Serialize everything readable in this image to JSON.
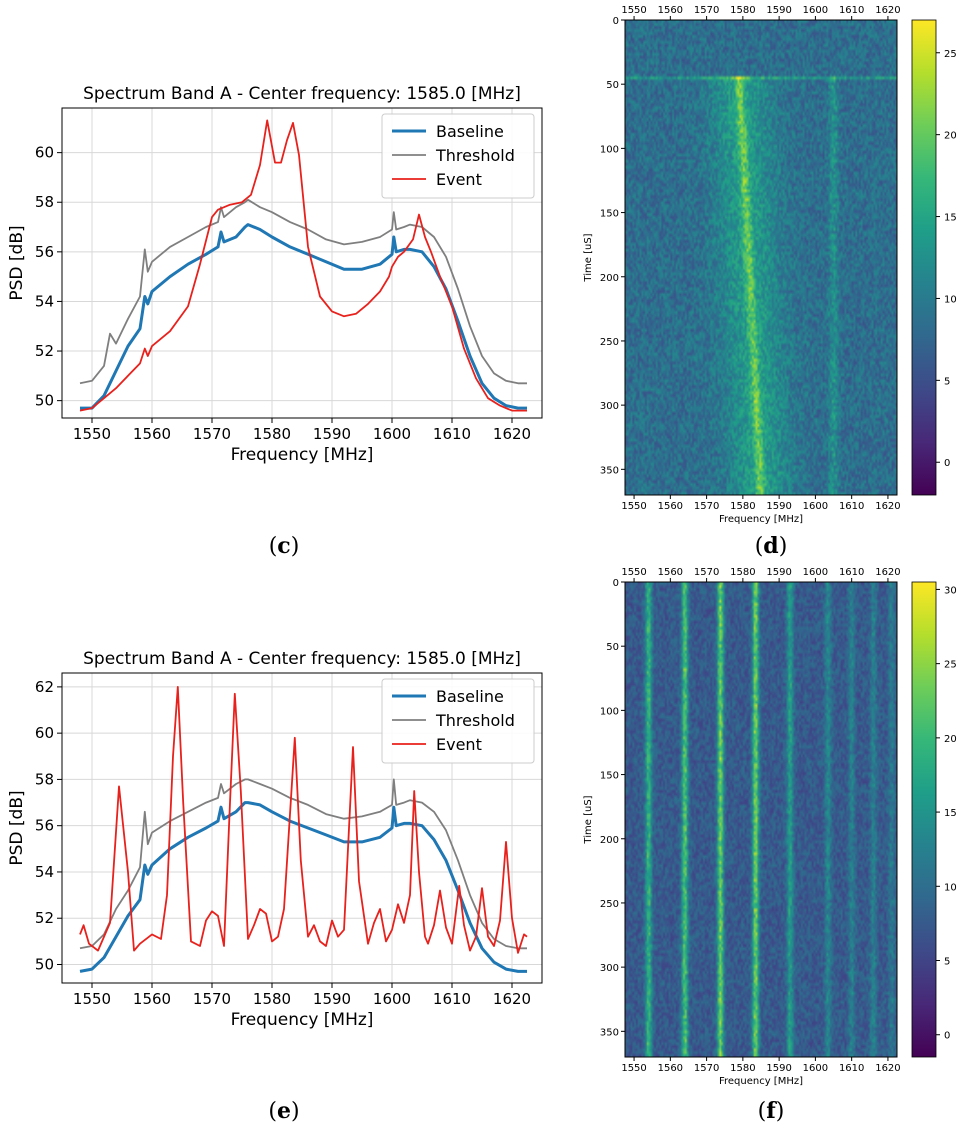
{
  "captions": {
    "c": "c",
    "d": "d",
    "e": "e",
    "f": "f"
  },
  "chart_data": [
    {
      "id": "c",
      "type": "line",
      "title": "Spectrum Band A - Center frequency: 1585.0 [MHz]",
      "xlabel": "Frequency [MHz]",
      "ylabel": "PSD [dB]",
      "xlim": [
        1545,
        1625
      ],
      "ylim": [
        49.3,
        61.8
      ],
      "xticks": [
        1550,
        1560,
        1570,
        1580,
        1590,
        1600,
        1610,
        1620
      ],
      "yticks": [
        50,
        52,
        54,
        56,
        58,
        60
      ],
      "grid": true,
      "legend_position": "top-right",
      "series": [
        {
          "name": "Baseline",
          "color": "#1f77b4",
          "width": 3,
          "x": [
            1548,
            1550,
            1552,
            1554,
            1556,
            1558,
            1558.8,
            1559.3,
            1560,
            1563,
            1566,
            1569,
            1571,
            1571.5,
            1572,
            1574,
            1575.5,
            1576,
            1578,
            1580,
            1583,
            1586,
            1589,
            1592,
            1595,
            1598,
            1600,
            1600.3,
            1600.7,
            1602,
            1603,
            1605,
            1607,
            1609,
            1611,
            1613,
            1615,
            1617,
            1619,
            1621,
            1622.5
          ],
          "y": [
            49.7,
            49.7,
            50.2,
            51.2,
            52.2,
            52.9,
            54.2,
            53.9,
            54.4,
            55.0,
            55.5,
            55.9,
            56.2,
            56.8,
            56.4,
            56.6,
            57.0,
            57.1,
            56.9,
            56.6,
            56.2,
            55.9,
            55.6,
            55.3,
            55.3,
            55.5,
            55.9,
            56.6,
            56.0,
            56.1,
            56.1,
            56.0,
            55.4,
            54.5,
            53.2,
            51.8,
            50.7,
            50.1,
            49.8,
            49.7,
            49.7
          ]
        },
        {
          "name": "Threshold",
          "color": "#7f7f7f",
          "width": 1.8,
          "x": [
            1548,
            1550,
            1552,
            1553,
            1554,
            1556,
            1558,
            1558.8,
            1559.3,
            1560,
            1563,
            1566,
            1569,
            1571,
            1571.5,
            1572,
            1574,
            1575.5,
            1576,
            1578,
            1580,
            1583,
            1586,
            1589,
            1592,
            1595,
            1598,
            1600,
            1600.3,
            1600.7,
            1602,
            1603,
            1605,
            1607,
            1609,
            1611,
            1613,
            1615,
            1617,
            1619,
            1621,
            1622.5
          ],
          "y": [
            50.7,
            50.8,
            51.4,
            52.7,
            52.3,
            53.3,
            54.2,
            56.1,
            55.2,
            55.6,
            56.2,
            56.6,
            57.0,
            57.2,
            57.8,
            57.4,
            57.8,
            58.0,
            58.1,
            57.8,
            57.6,
            57.2,
            56.9,
            56.5,
            56.3,
            56.4,
            56.6,
            56.9,
            57.6,
            56.9,
            57.0,
            57.1,
            57.0,
            56.6,
            55.8,
            54.5,
            53.0,
            51.8,
            51.1,
            50.8,
            50.7,
            50.7
          ]
        },
        {
          "name": "Event",
          "color": "#e8211c",
          "width": 1.8,
          "x": [
            1548,
            1550,
            1552,
            1554,
            1556,
            1558,
            1558.8,
            1559.3,
            1560,
            1563,
            1566,
            1568,
            1570,
            1571,
            1572,
            1573,
            1575,
            1576.5,
            1578,
            1579.2,
            1580.5,
            1581.5,
            1582.5,
            1583.5,
            1584.5,
            1586,
            1588,
            1590,
            1592,
            1594,
            1596,
            1598,
            1599.5,
            1600,
            1601,
            1602,
            1603.5,
            1604.5,
            1605.5,
            1606.5,
            1608,
            1610,
            1612,
            1614,
            1616,
            1618,
            1620,
            1622.5
          ],
          "y": [
            49.6,
            49.7,
            50.1,
            50.5,
            51.0,
            51.5,
            52.1,
            51.8,
            52.2,
            52.8,
            53.8,
            55.5,
            57.4,
            57.7,
            57.8,
            57.9,
            58.0,
            58.3,
            59.5,
            61.3,
            59.6,
            59.6,
            60.5,
            61.2,
            59.9,
            56.2,
            54.2,
            53.6,
            53.4,
            53.5,
            53.9,
            54.4,
            55.0,
            55.4,
            55.8,
            56.0,
            56.5,
            57.5,
            56.6,
            56.0,
            55.0,
            53.8,
            52.1,
            50.9,
            50.1,
            49.8,
            49.6,
            49.6
          ]
        }
      ]
    },
    {
      "id": "d",
      "type": "heatmap",
      "xlabel": "Frequency [MHz]",
      "ylabel": "Time [uS]",
      "xlim": [
        1547.5,
        1622.5
      ],
      "ylim": [
        0,
        370
      ],
      "xticks": [
        1550,
        1560,
        1570,
        1580,
        1590,
        1600,
        1610,
        1620
      ],
      "yticks": [
        0,
        50,
        100,
        150,
        200,
        250,
        300,
        350
      ],
      "colorbar_range": [
        -2,
        27
      ],
      "colorbar_ticks": [
        0,
        5,
        10,
        15,
        20,
        25
      ],
      "colormap": "viridis"
    },
    {
      "id": "e",
      "type": "line",
      "title": "Spectrum Band A - Center frequency: 1585.0 [MHz]",
      "xlabel": "Frequency [MHz]",
      "ylabel": "PSD [dB]",
      "xlim": [
        1545,
        1625
      ],
      "ylim": [
        49.2,
        62.6
      ],
      "xticks": [
        1550,
        1560,
        1570,
        1580,
        1590,
        1600,
        1610,
        1620
      ],
      "yticks": [
        50,
        52,
        54,
        56,
        58,
        60,
        62
      ],
      "grid": true,
      "legend_position": "top-right",
      "series": [
        {
          "name": "Baseline",
          "color": "#1f77b4",
          "width": 3,
          "x": [
            1548,
            1550,
            1552,
            1554,
            1556,
            1558,
            1558.8,
            1559.3,
            1560,
            1563,
            1566,
            1569,
            1571,
            1571.5,
            1572,
            1574,
            1575.5,
            1576,
            1578,
            1580,
            1583,
            1586,
            1589,
            1592,
            1595,
            1598,
            1600,
            1600.3,
            1600.7,
            1602,
            1603,
            1605,
            1607,
            1609,
            1611,
            1613,
            1615,
            1617,
            1619,
            1621,
            1622.5
          ],
          "y": [
            49.7,
            49.8,
            50.3,
            51.2,
            52.1,
            52.8,
            54.3,
            53.9,
            54.3,
            55.0,
            55.5,
            55.9,
            56.2,
            56.8,
            56.3,
            56.6,
            57.0,
            57.0,
            56.9,
            56.6,
            56.2,
            55.9,
            55.6,
            55.3,
            55.3,
            55.5,
            55.9,
            56.8,
            56.0,
            56.1,
            56.1,
            56.0,
            55.4,
            54.5,
            53.2,
            51.8,
            50.7,
            50.1,
            49.8,
            49.7,
            49.7
          ]
        },
        {
          "name": "Threshold",
          "color": "#7f7f7f",
          "width": 1.8,
          "x": [
            1548,
            1550,
            1552,
            1554,
            1556,
            1558,
            1558.8,
            1559.3,
            1560,
            1563,
            1566,
            1569,
            1571,
            1571.5,
            1572,
            1574,
            1575.5,
            1576,
            1578,
            1580,
            1583,
            1586,
            1589,
            1592,
            1595,
            1598,
            1600,
            1600.3,
            1600.7,
            1602,
            1603,
            1605,
            1607,
            1609,
            1611,
            1613,
            1615,
            1617,
            1619,
            1621,
            1622.5
          ],
          "y": [
            50.7,
            50.8,
            51.3,
            52.4,
            53.2,
            54.2,
            56.6,
            55.2,
            55.7,
            56.2,
            56.6,
            57.0,
            57.2,
            57.8,
            57.4,
            57.8,
            58.0,
            58.0,
            57.8,
            57.6,
            57.2,
            56.9,
            56.5,
            56.3,
            56.4,
            56.6,
            56.9,
            58.0,
            56.9,
            57.0,
            57.1,
            57.0,
            56.6,
            55.8,
            54.5,
            53.0,
            51.8,
            51.1,
            50.8,
            50.7,
            50.7
          ]
        },
        {
          "name": "Event",
          "color": "#e8211c",
          "width": 1.8,
          "x": [
            1548,
            1548.6,
            1549.5,
            1551,
            1553,
            1554.5,
            1556,
            1557,
            1558,
            1560,
            1561.5,
            1562.5,
            1563.5,
            1564.3,
            1565.2,
            1566.5,
            1568,
            1569,
            1570,
            1571,
            1572,
            1573,
            1573.8,
            1574.8,
            1576,
            1577,
            1578,
            1579,
            1580,
            1581,
            1582,
            1583,
            1583.8,
            1584.8,
            1586,
            1587,
            1588,
            1589,
            1590,
            1591,
            1592,
            1593.5,
            1594.5,
            1596,
            1597,
            1598,
            1599,
            1600,
            1601,
            1602,
            1603,
            1603.7,
            1604.5,
            1605.5,
            1606,
            1607,
            1608,
            1609,
            1610,
            1611.2,
            1612,
            1613,
            1614,
            1615,
            1616,
            1617,
            1618,
            1619,
            1620,
            1621,
            1622,
            1622.5
          ],
          "y": [
            51.3,
            51.7,
            50.9,
            50.6,
            51.8,
            57.7,
            54.0,
            50.6,
            50.9,
            51.3,
            51.1,
            53.0,
            59.0,
            62.0,
            57.0,
            51.0,
            50.8,
            51.9,
            52.3,
            52.1,
            50.8,
            57.0,
            61.7,
            57.5,
            51.1,
            51.7,
            52.4,
            52.2,
            51.0,
            51.2,
            52.4,
            56.5,
            59.8,
            54.5,
            51.2,
            51.7,
            51.0,
            50.8,
            51.9,
            51.2,
            51.5,
            59.4,
            53.6,
            50.9,
            51.8,
            52.4,
            51.0,
            51.5,
            52.6,
            51.8,
            53.0,
            57.5,
            54.0,
            51.2,
            50.9,
            51.7,
            53.2,
            51.6,
            50.9,
            53.4,
            51.7,
            50.6,
            51.2,
            53.3,
            51.2,
            50.8,
            51.9,
            55.3,
            52.0,
            50.5,
            51.3,
            51.2
          ]
        }
      ]
    },
    {
      "id": "f",
      "type": "heatmap",
      "xlabel": "Frequency [MHz]",
      "ylabel": "Time [uS]",
      "xlim": [
        1547.5,
        1622.5
      ],
      "ylim": [
        0,
        370
      ],
      "xticks": [
        1550,
        1560,
        1570,
        1580,
        1590,
        1600,
        1610,
        1620
      ],
      "yticks": [
        0,
        50,
        100,
        150,
        200,
        250,
        300,
        350
      ],
      "colorbar_range": [
        -1.5,
        30.5
      ],
      "colorbar_ticks": [
        0,
        5,
        10,
        15,
        20,
        25,
        30
      ],
      "colormap": "viridis"
    }
  ]
}
